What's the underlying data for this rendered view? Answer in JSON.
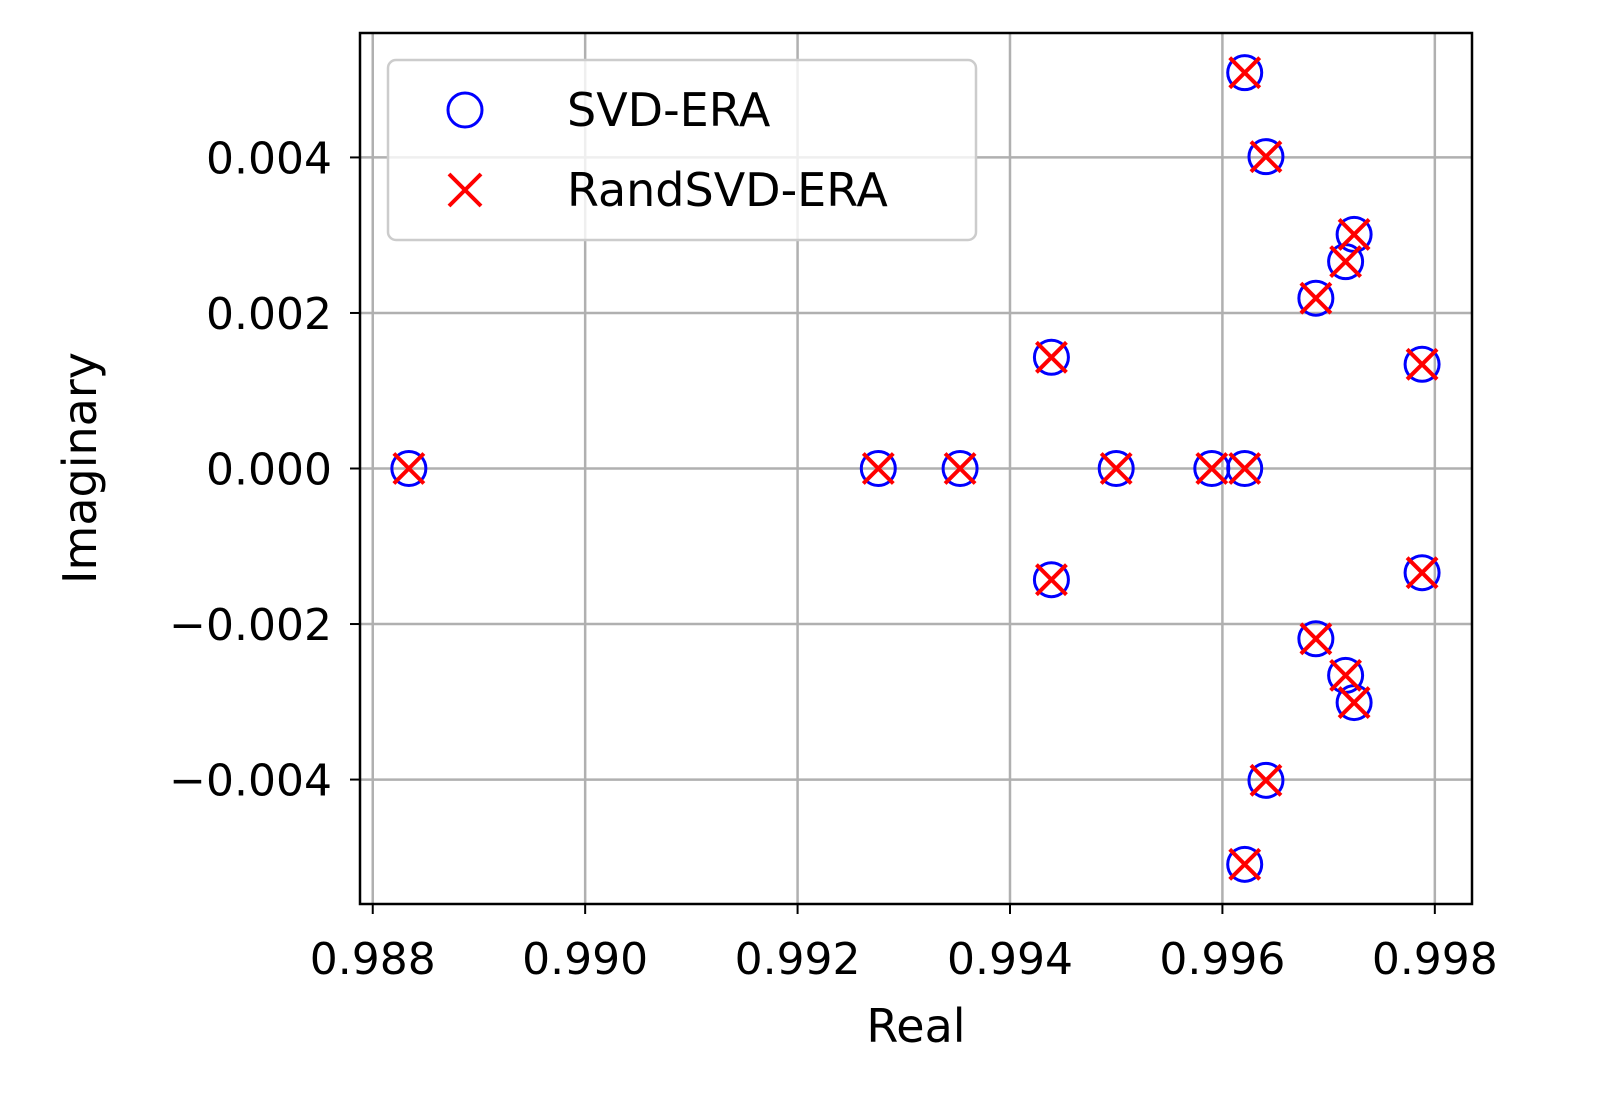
{
  "chart_data": {
    "type": "scatter",
    "title": "",
    "xlabel": "Real",
    "ylabel": "Imaginary",
    "xlim": [
      0.98788,
      0.99835
    ],
    "ylim": [
      -0.0056,
      0.0056
    ],
    "xticks": [
      0.988,
      0.99,
      0.992,
      0.994,
      0.996,
      0.998
    ],
    "xtick_labels": [
      "0.988",
      "0.990",
      "0.992",
      "0.994",
      "0.996",
      "0.998"
    ],
    "yticks": [
      -0.004,
      -0.002,
      0.0,
      0.002,
      0.004
    ],
    "ytick_labels": [
      "−0.004",
      "−0.002",
      "0.000",
      "0.002",
      "0.004"
    ],
    "grid": true,
    "legend_position": "top-left",
    "series": [
      {
        "name": "SVD-ERA",
        "marker": "open-circle",
        "color": "#0000ff",
        "x": [
          0.98834,
          0.99276,
          0.99353,
          0.99439,
          0.99439,
          0.995,
          0.9959,
          0.99621,
          0.99621,
          0.99621,
          0.99641,
          0.99641,
          0.99688,
          0.99688,
          0.99716,
          0.99716,
          0.99724,
          0.99724,
          0.99788,
          0.99788
        ],
        "y": [
          0.0,
          0.0,
          0.0,
          0.00143,
          -0.00143,
          0.0,
          0.0,
          0.0,
          0.00509,
          -0.00509,
          0.00401,
          -0.00401,
          0.00219,
          -0.00219,
          0.00266,
          -0.00266,
          0.00301,
          -0.00301,
          0.00134,
          -0.00134
        ]
      },
      {
        "name": "RandSVD-ERA",
        "marker": "x",
        "color": "#ff0000",
        "x": [
          0.98834,
          0.99276,
          0.99353,
          0.99439,
          0.99439,
          0.995,
          0.9959,
          0.99621,
          0.99621,
          0.99621,
          0.99641,
          0.99641,
          0.99688,
          0.99688,
          0.99716,
          0.99716,
          0.99724,
          0.99724,
          0.99788,
          0.99788
        ],
        "y": [
          0.0,
          0.0,
          0.0,
          0.00143,
          -0.00143,
          0.0,
          0.0,
          0.0,
          0.00509,
          -0.00509,
          0.00401,
          -0.00401,
          0.00219,
          -0.00219,
          0.00266,
          -0.00266,
          0.00301,
          -0.00301,
          0.00134,
          -0.00134
        ]
      }
    ]
  }
}
